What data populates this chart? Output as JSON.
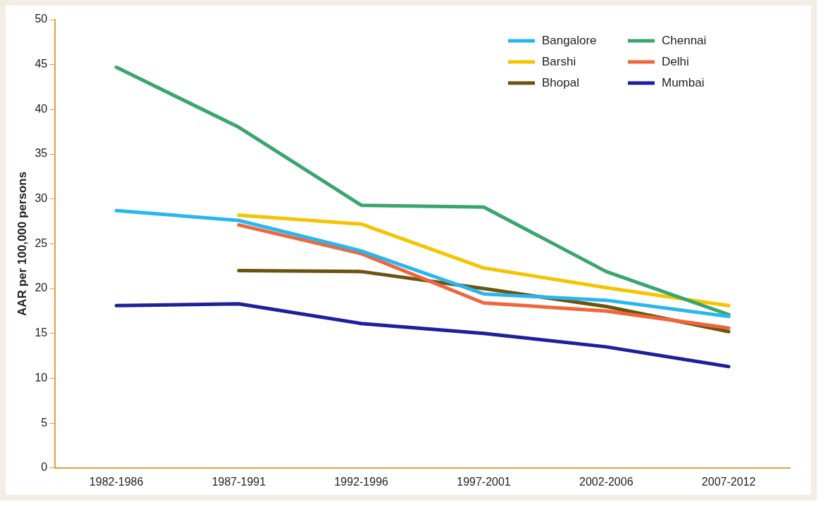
{
  "chart_data": {
    "type": "line",
    "ylabel": "AAR per 100,000 persons",
    "categories": [
      "1982-1986",
      "1987-1991",
      "1992-1996",
      "1997-2001",
      "2002-2006",
      "2007-2012"
    ],
    "series": [
      {
        "name": "Bangalore",
        "color": "#29b6f0",
        "values": [
          28.7,
          27.6,
          24.2,
          19.4,
          18.7,
          16.9
        ]
      },
      {
        "name": "Chennai",
        "color": "#3aa56e",
        "values": [
          44.7,
          38.0,
          29.3,
          29.1,
          21.9,
          17.1
        ]
      },
      {
        "name": "Barshi",
        "color": "#f5c400",
        "values": [
          null,
          28.2,
          27.2,
          22.3,
          20.1,
          18.1
        ]
      },
      {
        "name": "Delhi",
        "color": "#f0653a",
        "values": [
          null,
          27.1,
          23.9,
          18.4,
          17.5,
          15.6
        ]
      },
      {
        "name": "Bhopal",
        "color": "#6b5410",
        "values": [
          null,
          22.0,
          21.9,
          20.0,
          18.0,
          15.2
        ]
      },
      {
        "name": "Mumbai",
        "color": "#1f1f9e",
        "values": [
          18.1,
          18.3,
          16.1,
          15.0,
          13.5,
          11.3
        ]
      }
    ],
    "ylim": [
      0,
      50
    ],
    "yticks": [
      0,
      5,
      10,
      15,
      20,
      25,
      30,
      35,
      40,
      45,
      50
    ],
    "grid": false,
    "legend": "top right",
    "marker": "none",
    "line_style": "solid"
  }
}
